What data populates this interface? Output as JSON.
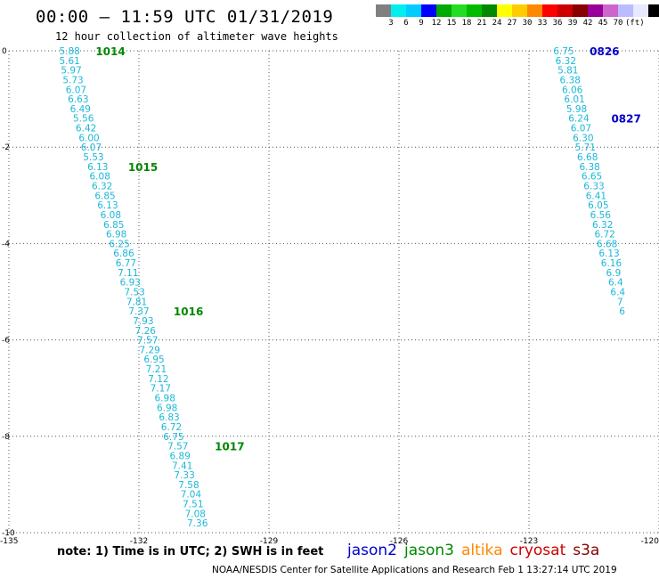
{
  "header": {
    "title": "00:00 – 11:59 UTC 01/31/2019",
    "subtitle": "12 hour collection of altimeter wave heights"
  },
  "legend": {
    "colors": [
      "#808080",
      "#00eeee",
      "#00ccff",
      "#0000ff",
      "#00aa00",
      "#22dd22",
      "#00bb00",
      "#008800",
      "#ffff00",
      "#ffcc00",
      "#ff8800",
      "#ff0000",
      "#cc0000",
      "#880000",
      "#990099",
      "#cc66cc",
      "#bbbbff",
      "#e8e8ff",
      "#000000"
    ],
    "labels": [
      "3",
      "6",
      "9",
      "12",
      "15",
      "18",
      "21",
      "24",
      "27",
      "30",
      "33",
      "36",
      "39",
      "42",
      "45",
      "70",
      "(ft)"
    ]
  },
  "axes": {
    "y_ticks": [
      "0",
      "-2",
      "-4",
      "-6",
      "-8",
      "-10"
    ],
    "x_ticks": [
      "-135",
      "-132",
      "-129",
      "-126",
      "-123",
      "-120"
    ]
  },
  "chart_data": {
    "type": "scatter",
    "xlim": [
      -135,
      -120
    ],
    "ylim": [
      -10,
      0
    ],
    "grid": true,
    "series": [
      {
        "name": "jason3",
        "color": "#1bb8d8",
        "points": [
          [
            -133.6,
            0.0,
            "5.88"
          ],
          [
            -133.6,
            -0.2,
            "5.61"
          ],
          [
            -133.56,
            -0.4,
            "5.97"
          ],
          [
            -133.52,
            -0.6,
            "5.73"
          ],
          [
            -133.45,
            -0.8,
            "6.07"
          ],
          [
            -133.4,
            -1.0,
            "6.63"
          ],
          [
            -133.35,
            -1.2,
            "6.49"
          ],
          [
            -133.28,
            -1.4,
            "5.56"
          ],
          [
            -133.22,
            -1.6,
            "6.42"
          ],
          [
            -133.15,
            -1.8,
            "6.00"
          ],
          [
            -133.1,
            -2.0,
            "6.07"
          ],
          [
            -133.05,
            -2.2,
            "5.53"
          ],
          [
            -132.95,
            -2.4,
            "6.13"
          ],
          [
            -132.9,
            -2.6,
            "6.08"
          ],
          [
            -132.85,
            -2.8,
            "6.32"
          ],
          [
            -132.78,
            -3.0,
            "6.85"
          ],
          [
            -132.72,
            -3.2,
            "6.13"
          ],
          [
            -132.65,
            -3.4,
            "6.08"
          ],
          [
            -132.58,
            -3.6,
            "6.85"
          ],
          [
            -132.52,
            -3.8,
            "6.98"
          ],
          [
            -132.45,
            -4.0,
            "6.25"
          ],
          [
            -132.35,
            -4.2,
            "6.86"
          ],
          [
            -132.3,
            -4.4,
            "6.77"
          ],
          [
            -132.25,
            -4.6,
            "7.11"
          ],
          [
            -132.2,
            -4.8,
            "6.93"
          ],
          [
            -132.1,
            -5.0,
            "7.53"
          ],
          [
            -132.05,
            -5.2,
            "7.81"
          ],
          [
            -132.0,
            -5.4,
            "7.37"
          ],
          [
            -131.9,
            -5.6,
            "7.93"
          ],
          [
            -131.85,
            -5.8,
            "7.26"
          ],
          [
            -131.8,
            -6.0,
            "7.57"
          ],
          [
            -131.75,
            -6.2,
            "7.29"
          ],
          [
            -131.65,
            -6.4,
            "6.95"
          ],
          [
            -131.6,
            -6.6,
            "7.21"
          ],
          [
            -131.55,
            -6.8,
            "7.12"
          ],
          [
            -131.5,
            -7.0,
            "7.17"
          ],
          [
            -131.4,
            -7.2,
            "6.98"
          ],
          [
            -131.35,
            -7.4,
            "6.98"
          ],
          [
            -131.3,
            -7.6,
            "6.83"
          ],
          [
            -131.25,
            -7.8,
            "6.72"
          ],
          [
            -131.2,
            -8.0,
            "6.75"
          ],
          [
            -131.1,
            -8.2,
            "7.57"
          ],
          [
            -131.05,
            -8.4,
            "6.89"
          ],
          [
            -131.0,
            -8.6,
            "7.41"
          ],
          [
            -130.95,
            -8.8,
            "7.33"
          ],
          [
            -130.85,
            -9.0,
            "7.58"
          ],
          [
            -130.8,
            -9.2,
            "7.04"
          ],
          [
            -130.75,
            -9.4,
            "7.51"
          ],
          [
            -130.7,
            -9.6,
            "7.08"
          ],
          [
            -130.65,
            -9.8,
            "7.36"
          ]
        ],
        "time_marks": [
          {
            "x": -133.0,
            "y": 0.0,
            "label": "1014"
          },
          {
            "x": -132.25,
            "y": -2.4,
            "label": "1015"
          },
          {
            "x": -131.2,
            "y": -5.4,
            "label": "1016"
          },
          {
            "x": -130.25,
            "y": -8.2,
            "label": "1017"
          }
        ]
      },
      {
        "name": "jason2",
        "color": "#1bb8d8",
        "points": [
          [
            -122.2,
            0.0,
            "6.75"
          ],
          [
            -122.15,
            -0.2,
            "6.32"
          ],
          [
            -122.1,
            -0.4,
            "5.81"
          ],
          [
            -122.05,
            -0.6,
            "6.38"
          ],
          [
            -122.0,
            -0.8,
            "6.06"
          ],
          [
            -121.95,
            -1.0,
            "6.01"
          ],
          [
            -121.9,
            -1.2,
            "5.98"
          ],
          [
            -121.85,
            -1.4,
            "6.24"
          ],
          [
            -121.8,
            -1.6,
            "6.07"
          ],
          [
            -121.75,
            -1.8,
            "6.30"
          ],
          [
            -121.7,
            -2.0,
            "5.71"
          ],
          [
            -121.65,
            -2.2,
            "6.68"
          ],
          [
            -121.6,
            -2.4,
            "6.38"
          ],
          [
            -121.55,
            -2.6,
            "6.65"
          ],
          [
            -121.5,
            -2.8,
            "6.33"
          ],
          [
            -121.45,
            -3.0,
            "6.41"
          ],
          [
            -121.4,
            -3.2,
            "6.05"
          ],
          [
            -121.35,
            -3.4,
            "6.56"
          ],
          [
            -121.3,
            -3.6,
            "6.32"
          ],
          [
            -121.25,
            -3.8,
            "6.72"
          ],
          [
            -121.2,
            -4.0,
            "6.68"
          ],
          [
            -121.15,
            -4.2,
            "6.13"
          ],
          [
            -121.1,
            -4.4,
            "6.16"
          ],
          [
            -121.05,
            -4.6,
            "6.9"
          ],
          [
            -121.0,
            -4.8,
            "6.4"
          ],
          [
            -120.95,
            -5.0,
            "6.4"
          ],
          [
            -120.9,
            -5.2,
            "7"
          ],
          [
            -120.85,
            -5.4,
            "6"
          ]
        ],
        "time_marks": [
          {
            "x": -121.6,
            "y": 0.0,
            "label": "0826"
          },
          {
            "x": -121.1,
            "y": -1.4,
            "label": "0827"
          }
        ]
      }
    ]
  },
  "note": "note: 1) Time is in UTC; 2) SWH is in feet",
  "satellites": [
    {
      "name": "jason2",
      "color": "#0000cc"
    },
    {
      "name": "jason3",
      "color": "#008800"
    },
    {
      "name": "altika",
      "color": "#ff8800"
    },
    {
      "name": "cryosat",
      "color": "#cc0000"
    },
    {
      "name": "s3a",
      "color": "#880000"
    }
  ],
  "footer": "NOAA/NESDIS Center for Satellite Applications and Research   Feb  1 13:27:14 UTC 2019"
}
